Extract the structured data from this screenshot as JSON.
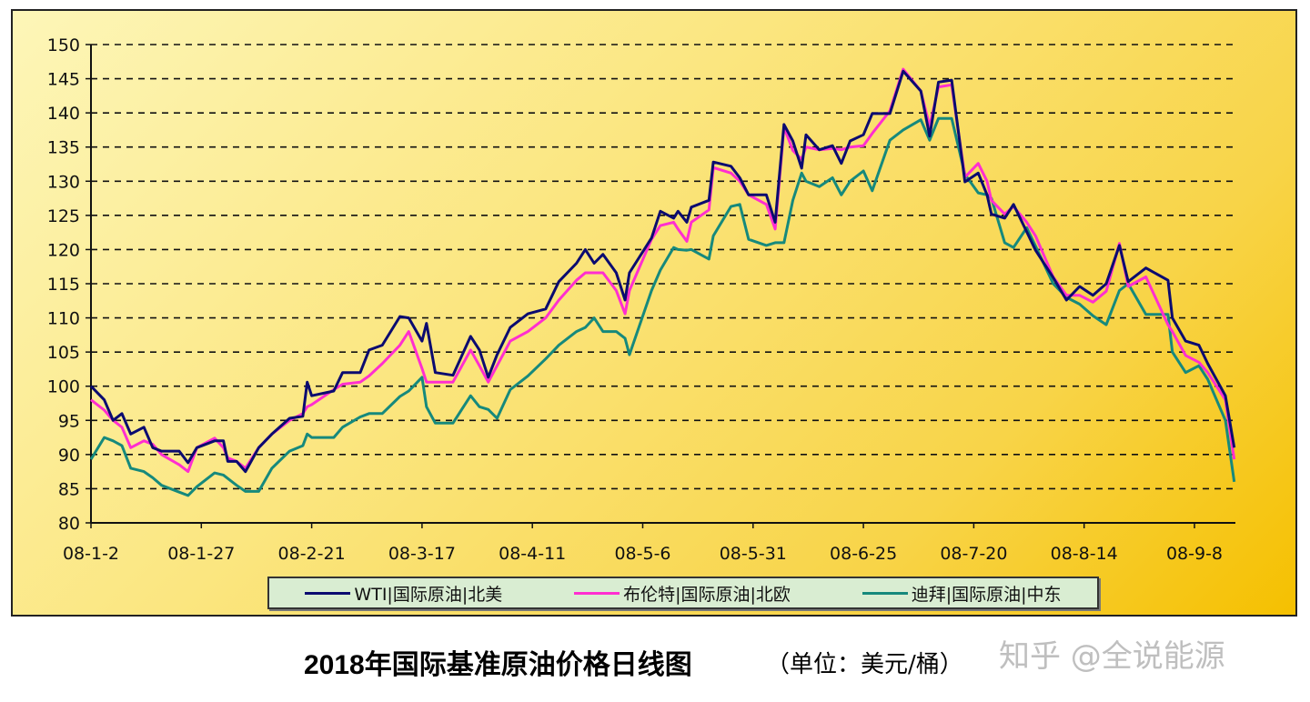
{
  "chart_data": {
    "type": "line",
    "title": "2018年国际基准原油价格日线图",
    "unit_note": "（单位：美元/桶）",
    "ylim": [
      80,
      150
    ],
    "yticks": [
      80,
      85,
      90,
      95,
      100,
      105,
      110,
      115,
      120,
      125,
      130,
      135,
      140,
      145,
      150
    ],
    "xticks": [
      "08-1-2",
      "08-1-27",
      "08-2-21",
      "08-3-17",
      "08-4-11",
      "08-5-6",
      "08-5-31",
      "08-6-25",
      "08-7-20",
      "08-8-14",
      "08-9-8"
    ],
    "grid": "horizontal dashed",
    "legend": "bottom",
    "x": [
      "08-1-2",
      "08-1-5",
      "08-1-7",
      "08-1-9",
      "08-1-11",
      "08-1-14",
      "08-1-16",
      "08-1-18",
      "08-1-22",
      "08-1-24",
      "08-1-26",
      "08-1-30",
      "08-2-1",
      "08-2-2",
      "08-2-4",
      "08-2-6",
      "08-2-9",
      "08-2-12",
      "08-2-16",
      "08-2-19",
      "08-2-20",
      "08-2-21",
      "08-2-26",
      "08-2-28",
      "08-3-3",
      "08-3-5",
      "08-3-8",
      "08-3-12",
      "08-3-14",
      "08-3-17",
      "08-3-18",
      "08-3-20",
      "08-3-24",
      "08-3-28",
      "08-3-30",
      "08-4-1",
      "08-4-3",
      "08-4-6",
      "08-4-10",
      "08-4-14",
      "08-4-17",
      "08-4-21",
      "08-4-23",
      "08-4-25",
      "08-4-27",
      "08-4-30",
      "08-5-2",
      "08-5-3",
      "08-5-8",
      "08-5-10",
      "08-5-13",
      "08-5-14",
      "08-5-16",
      "08-5-17",
      "08-5-21",
      "08-5-22",
      "08-5-26",
      "08-5-28",
      "08-5-30",
      "08-6-3",
      "08-6-5",
      "08-6-7",
      "08-6-9",
      "08-6-11",
      "08-6-12",
      "08-6-15",
      "08-6-18",
      "08-6-20",
      "08-6-22",
      "08-6-25",
      "08-6-27",
      "08-7-1",
      "08-7-4",
      "08-7-8",
      "08-7-10",
      "08-7-12",
      "08-7-15",
      "08-7-18",
      "08-7-21",
      "08-7-23",
      "08-7-24",
      "08-7-27",
      "08-7-29",
      "08-8-1",
      "08-8-3",
      "08-8-7",
      "08-8-10",
      "08-8-13",
      "08-8-16",
      "08-8-19",
      "08-8-22",
      "08-8-24",
      "08-8-28",
      "08-9-2",
      "08-9-3",
      "08-9-6",
      "08-9-9",
      "08-9-11",
      "08-9-15",
      "08-9-17"
    ],
    "series": [
      {
        "name": "WTI|国际原油|北美",
        "color": "#0b0b70",
        "values": [
          100,
          98,
          95,
          96,
          93,
          94,
          91,
          90.5,
          90.5,
          88.8,
          91,
          92,
          92,
          89,
          89,
          87.5,
          91,
          93,
          95.3,
          95.6,
          100.6,
          98.6,
          99.3,
          102,
          102,
          105.3,
          106,
          110.2,
          110,
          106.6,
          109.2,
          102,
          101.6,
          107.3,
          105.3,
          101.3,
          104.6,
          108.6,
          110.6,
          111.3,
          115.3,
          118,
          120,
          118,
          119.3,
          116.6,
          112.6,
          116.6,
          121.7,
          125.6,
          124.6,
          125.6,
          124,
          126.2,
          127.2,
          132.8,
          132.2,
          130.5,
          128,
          128,
          124,
          138.3,
          135.9,
          131.9,
          136.8,
          134.6,
          135.2,
          132.6,
          135.9,
          136.8,
          139.9,
          139.9,
          146.1,
          143.2,
          136.6,
          144.5,
          144.8,
          129.9,
          131.2,
          128,
          125.2,
          124.6,
          126.6,
          122.6,
          119.9,
          115.9,
          112.6,
          114.6,
          113.3,
          115,
          120.6,
          115.3,
          117.3,
          115.5,
          110,
          106.6,
          106,
          103.3,
          98.6,
          91
        ]
      },
      {
        "name": "布伦特|国际原油|北欧",
        "color": "#ff2ed0",
        "values": [
          98,
          96.5,
          95,
          94,
          91,
          92,
          91.5,
          90,
          88.5,
          87.5,
          91,
          92.4,
          91,
          89.5,
          89,
          88,
          91,
          93,
          95,
          96,
          97,
          97.3,
          99.5,
          100.3,
          100.6,
          101.5,
          103.3,
          106,
          108,
          102.6,
          100.6,
          100.6,
          100.6,
          105.3,
          103,
          100.6,
          103,
          106.6,
          108,
          110,
          112.6,
          115.5,
          116.6,
          116.6,
          116.6,
          114,
          110.6,
          114,
          121.5,
          123.5,
          124,
          123,
          121.2,
          124,
          125.8,
          132,
          131.2,
          130,
          128,
          126.6,
          123,
          137.9,
          134.5,
          133.2,
          135,
          134.6,
          134.8,
          134.6,
          135,
          135.2,
          137,
          140.3,
          146.4,
          143.2,
          138,
          143.8,
          144.1,
          130.6,
          132.6,
          130,
          127.2,
          125.2,
          126.3,
          124,
          122,
          116,
          113.3,
          113.3,
          112.3,
          113.9,
          120.9,
          114.6,
          116,
          109,
          108,
          104.5,
          103.5,
          102,
          98,
          89.3
        ]
      },
      {
        "name": "迪拜|国际原油|中东",
        "color": "#16897c",
        "values": [
          89.3,
          92.5,
          92,
          91.3,
          88,
          87.5,
          86.6,
          85.5,
          84.5,
          84,
          85.3,
          87.3,
          87,
          86.5,
          85.5,
          84.6,
          84.6,
          88,
          90.5,
          91.3,
          93,
          92.5,
          92.5,
          94,
          95.5,
          96,
          96,
          98.5,
          99.3,
          101.3,
          97,
          94.6,
          94.6,
          98.6,
          97,
          96.6,
          95.3,
          99.5,
          101.5,
          104,
          106,
          108,
          108.6,
          110,
          108,
          108,
          107,
          104.6,
          114,
          117,
          120.3,
          120,
          119.9,
          120,
          118.6,
          122,
          126.3,
          126.6,
          121.5,
          120.6,
          121,
          121,
          127.2,
          131.2,
          130,
          129.2,
          130.5,
          128,
          130,
          131.5,
          128.6,
          136,
          137.5,
          139,
          136,
          139.2,
          139.2,
          131,
          128.3,
          128,
          127.5,
          121,
          120.3,
          123.2,
          120.5,
          115,
          113,
          112,
          110.3,
          109,
          114,
          115,
          110.5,
          110.5,
          105,
          102,
          103,
          101,
          95,
          86
        ]
      }
    ]
  },
  "watermark": "知乎 @全说能源"
}
